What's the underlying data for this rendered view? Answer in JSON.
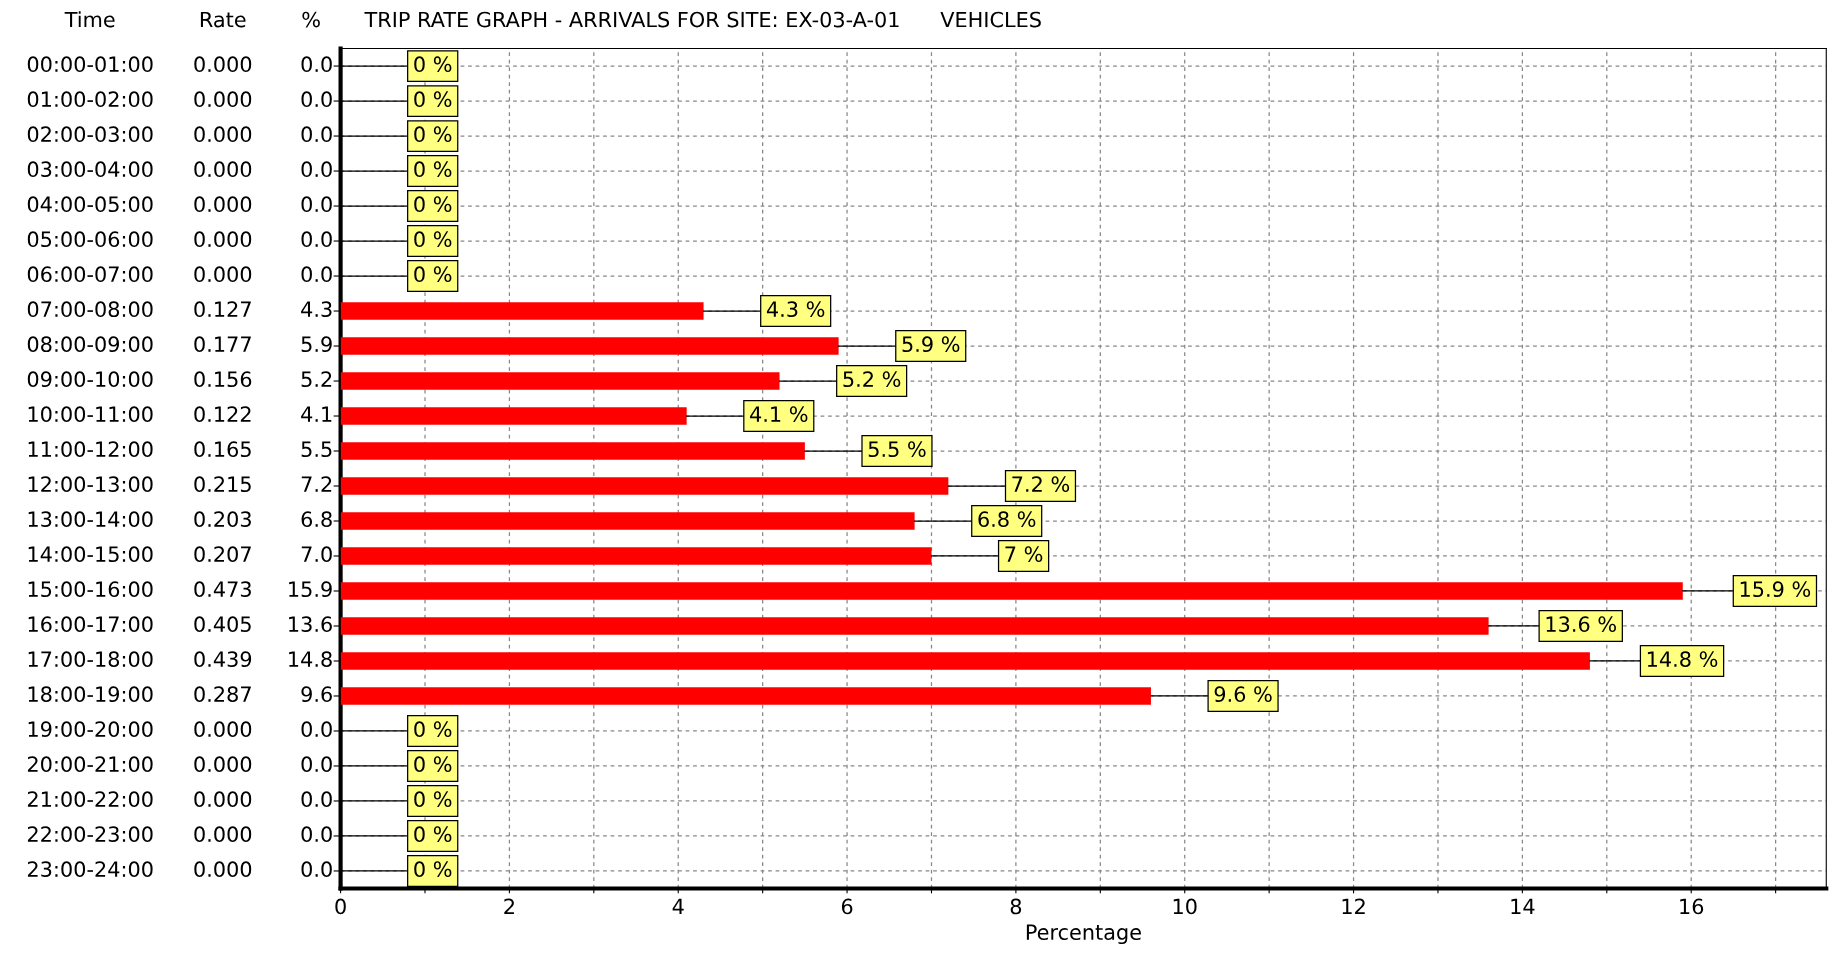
{
  "chart_data": {
    "type": "bar",
    "orientation": "horizontal",
    "title": "TRIP RATE GRAPH - ARRIVALS FOR SITE: EX-03-A-01      VEHICLES",
    "xlabel": "Percentage",
    "categories": [
      "00:00-01:00",
      "01:00-02:00",
      "02:00-03:00",
      "03:00-04:00",
      "04:00-05:00",
      "05:00-06:00",
      "06:00-07:00",
      "07:00-08:00",
      "08:00-09:00",
      "09:00-10:00",
      "10:00-11:00",
      "11:00-12:00",
      "12:00-13:00",
      "13:00-14:00",
      "14:00-15:00",
      "15:00-16:00",
      "16:00-17:00",
      "17:00-18:00",
      "18:00-19:00",
      "19:00-20:00",
      "20:00-21:00",
      "21:00-22:00",
      "22:00-23:00",
      "23:00-24:00"
    ],
    "values": [
      0.0,
      0.0,
      0.0,
      0.0,
      0.0,
      0.0,
      0.0,
      4.3,
      5.9,
      5.2,
      4.1,
      5.5,
      7.2,
      6.8,
      7.0,
      15.9,
      13.6,
      14.8,
      9.6,
      0.0,
      0.0,
      0.0,
      0.0,
      0.0
    ],
    "value_labels": [
      "0 %",
      "0 %",
      "0 %",
      "0 %",
      "0 %",
      "0 %",
      "0 %",
      "4.3 %",
      "5.9 %",
      "5.2 %",
      "4.1 %",
      "5.5 %",
      "7.2 %",
      "6.8 %",
      "7 %",
      "15.9 %",
      "13.6 %",
      "14.8 %",
      "9.6 %",
      "0 %",
      "0 %",
      "0 %",
      "0 %",
      "0 %"
    ],
    "color": "#ff0000",
    "xlim": [
      0,
      17.6
    ],
    "xticks": [
      0,
      {
        "value": 1,
        "label": null
      },
      2,
      {
        "value": 3,
        "label": null
      },
      4,
      {
        "value": 5,
        "label": null
      },
      6,
      {
        "value": 7,
        "label": null
      },
      8,
      {
        "value": 9,
        "label": null
      },
      10,
      {
        "value": 11,
        "label": null
      },
      12,
      {
        "value": 13,
        "label": null
      },
      14,
      {
        "value": 15,
        "label": null
      },
      16,
      {
        "value": 17,
        "label": null
      }
    ],
    "grid": true,
    "annotations": [
      "Time",
      "Rate",
      "%",
      "0.000",
      "0.000",
      "0.000",
      "0.000",
      "0.000",
      "0.000",
      "0.000",
      "0.127",
      "0.177",
      "0.156",
      "0.122",
      "0.165",
      "0.215",
      "0.203",
      "0.207",
      "0.473",
      "0.405",
      "0.439",
      "0.287",
      "0.000",
      "0.000",
      "0.000",
      "0.000",
      "0.000",
      "0.0",
      "0.0",
      "0.0",
      "0.0",
      "0.0",
      "0.0",
      "0.0",
      "4.3",
      "5.9",
      "5.2",
      "4.1",
      "5.5",
      "7.2",
      "6.8",
      "7.0",
      "15.9",
      "13.6",
      "14.8",
      "9.6",
      "0.0",
      "0.0",
      "0.0",
      "0.0",
      "0.0"
    ]
  }
}
